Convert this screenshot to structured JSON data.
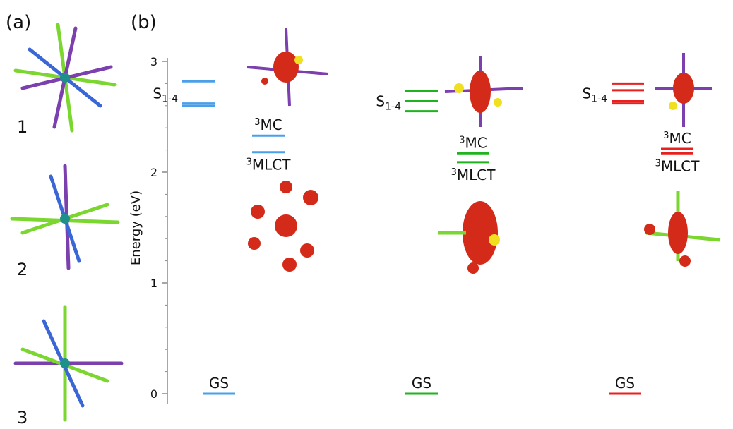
{
  "panel_a": {
    "label": "(a)",
    "structures": [
      "1",
      "2",
      "3"
    ]
  },
  "chart_data": {
    "type": "energy-levels",
    "panel_label": "(b)",
    "ylabel": "Energy (eV)",
    "ylim": [
      0,
      3
    ],
    "yticks": [
      0,
      1,
      2,
      3
    ],
    "yminor": [
      0.2,
      0.4,
      0.6,
      0.8,
      1.2,
      1.4,
      1.6,
      1.8,
      2.2,
      2.4,
      2.6,
      2.8
    ],
    "columns": [
      {
        "color": "#4a9fe8",
        "ground": {
          "label": "GS",
          "value": 0
        },
        "singlets": {
          "label": "S",
          "subscript": "1-4",
          "values": [
            2.82,
            2.62,
            2.6
          ]
        },
        "triplets": [
          {
            "superscript": "3",
            "label": "MC",
            "value": 2.33
          },
          {
            "superscript": "3",
            "label": "MLCT",
            "value": 2.18
          }
        ]
      },
      {
        "color": "#1fb31f",
        "ground": {
          "label": "GS",
          "value": 0
        },
        "singlets": {
          "label": "S",
          "subscript": "1-4",
          "values": [
            2.73,
            2.64,
            2.55
          ]
        },
        "triplets": [
          {
            "superscript": "3",
            "label": "MC",
            "value": 2.17
          },
          {
            "superscript": "3",
            "label": "MLCT",
            "value": 2.09
          }
        ]
      },
      {
        "color": "#e8211f",
        "ground": {
          "label": "GS",
          "value": 0
        },
        "singlets": {
          "label": "S",
          "subscript": "1-4",
          "values": [
            2.8,
            2.74,
            2.64,
            2.62
          ]
        },
        "triplets": [
          {
            "superscript": "3",
            "label": "MC",
            "value": 2.21
          },
          {
            "superscript": "3",
            "label": "MLCT",
            "value": 2.17
          }
        ]
      }
    ]
  }
}
